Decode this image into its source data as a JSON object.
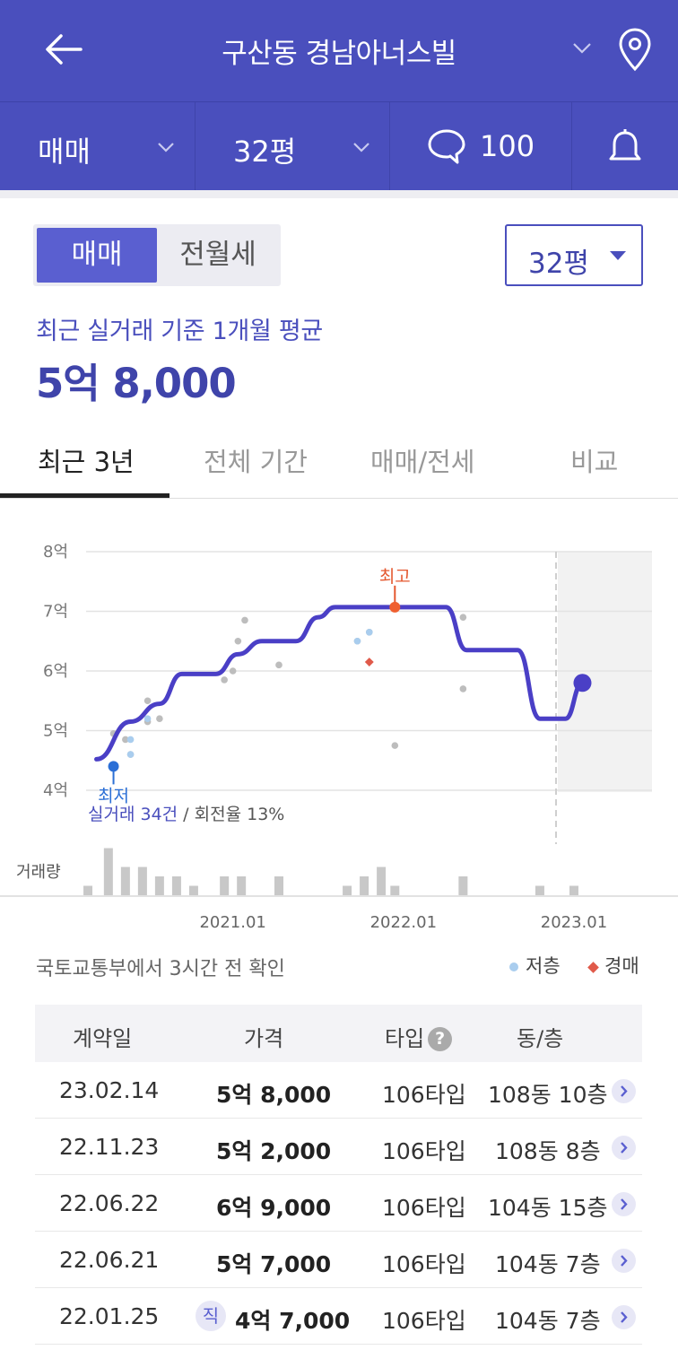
{
  "header": {
    "title": "구산동 경남아너스빌"
  },
  "subbar": {
    "deal_type": "매매",
    "area": "32평",
    "comment_count": "100"
  },
  "segment": {
    "active": "매매",
    "inactive": "전월세"
  },
  "area_select": "32평",
  "summary": {
    "label": "최근 실거래 기준 1개월 평균",
    "value": "5억 8,000"
  },
  "tabs": [
    "최근 3년",
    "전체 기간",
    "매매/전세",
    "비교"
  ],
  "chart_data": {
    "type": "line",
    "ylabel_ticks": [
      "8억",
      "7억",
      "6억",
      "5억",
      "4억"
    ],
    "ylim": [
      4,
      8
    ],
    "x_ticks": [
      "2021.01",
      "2022.01",
      "2023.01"
    ],
    "series": [
      {
        "values": [
          [
            2020.25,
            4.52
          ],
          [
            2020.45,
            5.15
          ],
          [
            2020.62,
            5.45
          ],
          [
            2020.75,
            5.95
          ],
          [
            2020.95,
            5.95
          ],
          [
            2021.08,
            6.28
          ],
          [
            2021.22,
            6.5
          ],
          [
            2021.42,
            6.5
          ],
          [
            2021.55,
            6.9
          ],
          [
            2021.65,
            7.07
          ],
          [
            2022.1,
            7.07
          ],
          [
            2022.3,
            7.07
          ],
          [
            2022.42,
            6.35
          ],
          [
            2022.72,
            6.35
          ],
          [
            2022.85,
            5.2
          ],
          [
            2023.0,
            5.2
          ],
          [
            2023.1,
            5.8
          ]
        ]
      }
    ],
    "scatter_points": [
      [
        2020.35,
        4.95
      ],
      [
        2020.42,
        4.85
      ],
      [
        2020.45,
        4.6
      ],
      [
        2020.55,
        5.15
      ],
      [
        2020.55,
        5.5
      ],
      [
        2020.62,
        5.2
      ],
      [
        2021.0,
        5.85
      ],
      [
        2021.05,
        6.0
      ],
      [
        2021.08,
        6.5
      ],
      [
        2021.12,
        6.85
      ],
      [
        2021.32,
        6.1
      ],
      [
        2021.78,
        6.5
      ],
      [
        2021.85,
        6.65
      ],
      [
        2022.0,
        4.75
      ],
      [
        2022.4,
        6.9
      ],
      [
        2022.4,
        5.7
      ]
    ],
    "low_floor_points": [
      [
        2020.45,
        4.6
      ],
      [
        2020.45,
        4.85
      ],
      [
        2020.55,
        5.2
      ],
      [
        2021.78,
        6.5
      ],
      [
        2021.85,
        6.65
      ]
    ],
    "auction_points": [
      [
        2021.85,
        6.15
      ]
    ],
    "annotations": {
      "high_label": "최고",
      "high_value": [
        2022.0,
        7.07
      ],
      "low_label": "최저",
      "low_value": [
        2020.35,
        4.4
      ]
    },
    "stats_text": {
      "trades": "실거래 34건",
      "turnover": " / 회전율 13%"
    },
    "volume_label": "거래량",
    "volume": [
      [
        2020.2,
        1
      ],
      [
        2020.32,
        5
      ],
      [
        2020.42,
        3
      ],
      [
        2020.52,
        3
      ],
      [
        2020.62,
        2
      ],
      [
        2020.72,
        2
      ],
      [
        2020.82,
        1
      ],
      [
        2021.0,
        2
      ],
      [
        2021.1,
        2
      ],
      [
        2021.32,
        2
      ],
      [
        2021.72,
        1
      ],
      [
        2021.82,
        2
      ],
      [
        2021.92,
        3
      ],
      [
        2022.0,
        1
      ],
      [
        2022.4,
        2
      ],
      [
        2022.85,
        1
      ],
      [
        2023.05,
        1
      ]
    ],
    "current_value": [
      2023.1,
      5.8
    ]
  },
  "source_note": "국토교통부에서 3시간 전 확인",
  "legend": {
    "low_floor": "저층",
    "auction": "경매"
  },
  "table": {
    "headers": {
      "date": "계약일",
      "price": "가격",
      "type": "타입",
      "unit": "동/층",
      "help": "?"
    },
    "rows": [
      {
        "date": "23.02.14",
        "price": "5억 8,000",
        "type": "106타입",
        "unit": "108동 10층",
        "badge": ""
      },
      {
        "date": "22.11.23",
        "price": "5억 2,000",
        "type": "106타입",
        "unit": "108동 8층",
        "badge": ""
      },
      {
        "date": "22.06.22",
        "price": "6억 9,000",
        "type": "106타입",
        "unit": "104동 15층",
        "badge": ""
      },
      {
        "date": "22.06.21",
        "price": "5억 7,000",
        "type": "106타입",
        "unit": "104동 7층",
        "badge": ""
      },
      {
        "date": "22.01.25",
        "price": "4억 7,000",
        "type": "106타입",
        "unit": "104동 7층",
        "badge": "직"
      }
    ]
  }
}
